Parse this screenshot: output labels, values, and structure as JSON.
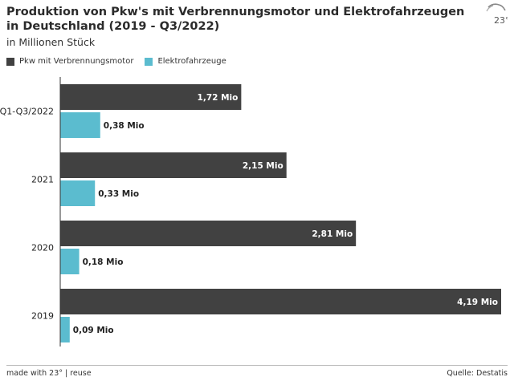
{
  "title": "Produktion von Pkw's mit Verbrennungsmotor und Elektrofahrzeugen in Deutschland (2019 - Q3/2022)",
  "subtitle": "in Millionen Stück",
  "logo_text": "23°",
  "footer": {
    "made_with": "made with 23° | reuse",
    "source": "Quelle: Destatis"
  },
  "colors": {
    "combustion": "#414141",
    "electric": "#5bbccf"
  },
  "chart_data": {
    "type": "bar",
    "orientation": "horizontal",
    "categories": [
      "Q1-Q3/2022",
      "2021",
      "2020",
      "2019"
    ],
    "series": [
      {
        "name": "Pkw mit Verbrennungsmotor",
        "values": [
          1.72,
          2.15,
          2.81,
          4.19
        ],
        "labels": [
          "1,72 Mio",
          "2,15 Mio",
          "2,81 Mio",
          "4,19 Mio"
        ]
      },
      {
        "name": "Elektrofahrzeuge",
        "values": [
          0.38,
          0.33,
          0.18,
          0.09
        ],
        "labels": [
          "0,38 Mio",
          "0,33 Mio",
          "0,18 Mio",
          "0,09 Mio"
        ]
      }
    ],
    "xlim": [
      0,
      4.19
    ],
    "grid": false,
    "legend_position": "top-left"
  }
}
